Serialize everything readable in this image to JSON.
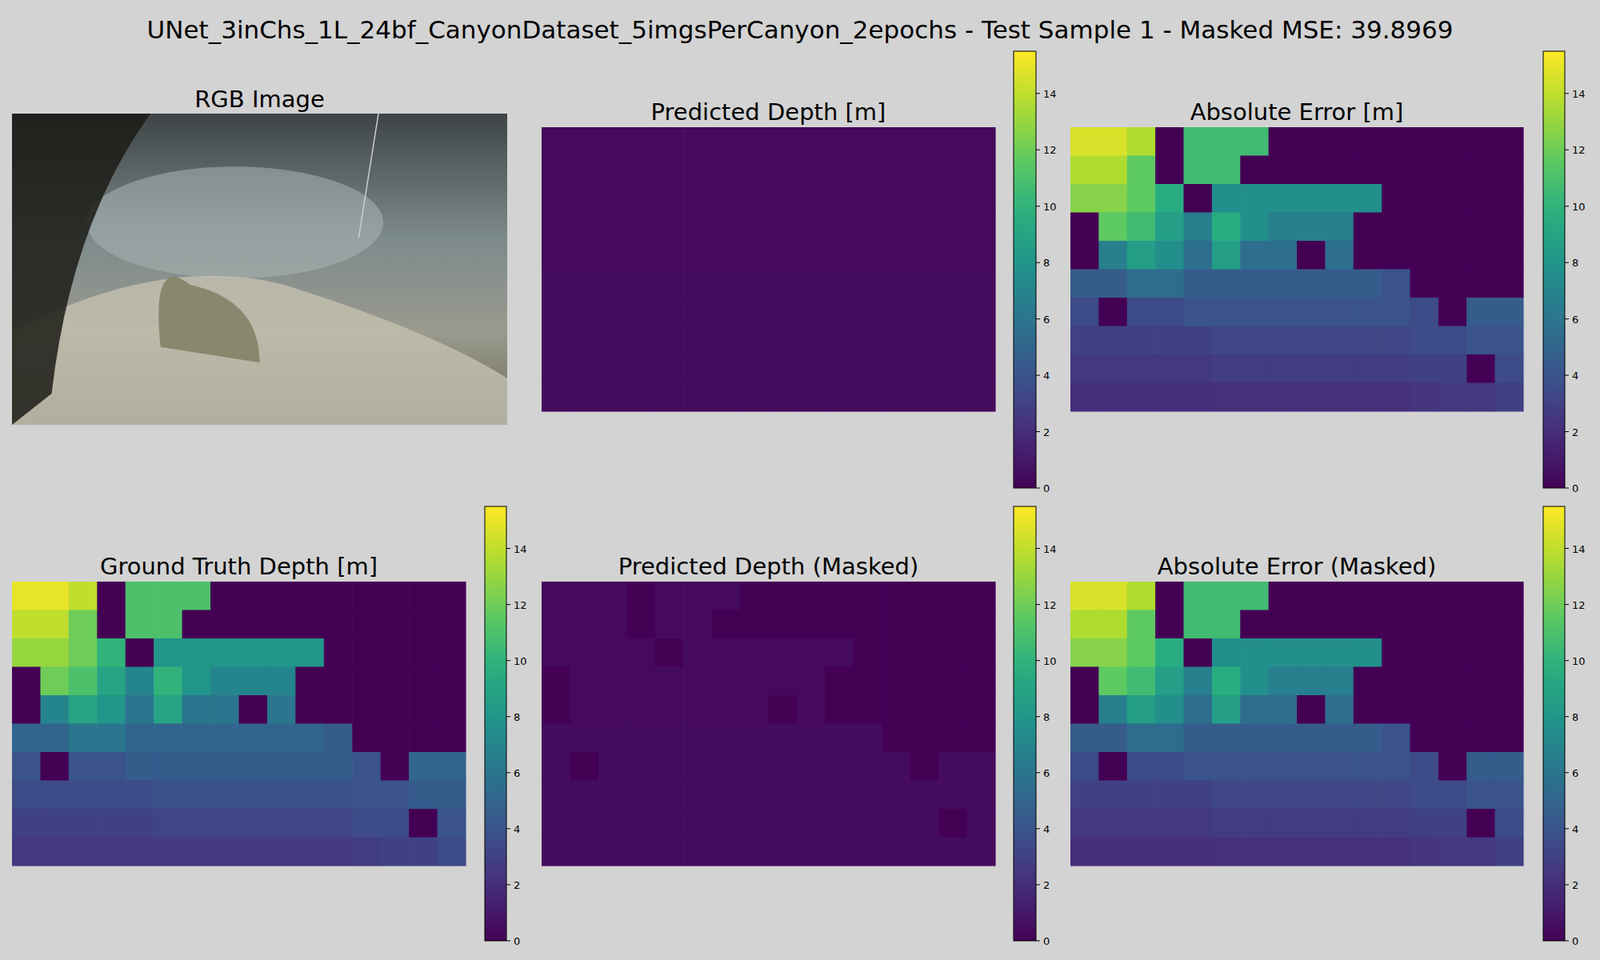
{
  "title": "UNet_3inChs_1L_24bf_CanyonDataset_5imgsPerCanyon_2epochs - Test Sample 1 - Masked MSE: 39.8969",
  "chart_data": [
    {
      "type": "image",
      "title": "RGB Image"
    },
    {
      "type": "heatmap",
      "title": "Predicted Depth [m]",
      "clim": [
        0,
        15.5
      ],
      "cticks": [
        0,
        2,
        4,
        6,
        8,
        10,
        12,
        14
      ],
      "cells": [
        [
          0.4,
          0.4,
          0.4,
          0.4,
          0.4,
          0.4,
          0.4,
          0.4,
          0.4,
          0.4,
          0.4,
          0.4,
          0.4,
          0.4,
          0.4,
          0.4
        ],
        [
          0.4,
          0.4,
          0.4,
          0.4,
          0.4,
          0.4,
          0.4,
          0.4,
          0.4,
          0.4,
          0.4,
          0.4,
          0.4,
          0.4,
          0.4,
          0.4
        ],
        [
          0.4,
          0.4,
          0.4,
          0.4,
          0.4,
          0.4,
          0.4,
          0.4,
          0.4,
          0.4,
          0.4,
          0.4,
          0.4,
          0.4,
          0.4,
          0.4
        ],
        [
          0.4,
          0.4,
          0.4,
          0.4,
          0.4,
          0.4,
          0.4,
          0.4,
          0.4,
          0.4,
          0.4,
          0.4,
          0.4,
          0.4,
          0.4,
          0.4
        ],
        [
          0.4,
          0.4,
          0.4,
          0.4,
          0.4,
          0.4,
          0.4,
          0.4,
          0.4,
          0.4,
          0.4,
          0.4,
          0.4,
          0.4,
          0.4,
          0.4
        ],
        [
          0.5,
          0.5,
          0.5,
          0.5,
          0.5,
          0.5,
          0.5,
          0.5,
          0.5,
          0.5,
          0.5,
          0.5,
          0.5,
          0.5,
          0.5,
          0.5
        ],
        [
          0.5,
          0.5,
          0.5,
          0.5,
          0.5,
          0.5,
          0.5,
          0.5,
          0.5,
          0.5,
          0.5,
          0.5,
          0.5,
          0.5,
          0.5,
          0.5
        ],
        [
          0.5,
          0.5,
          0.5,
          0.5,
          0.5,
          0.5,
          0.5,
          0.5,
          0.5,
          0.5,
          0.5,
          0.5,
          0.5,
          0.5,
          0.5,
          0.5
        ],
        [
          0.5,
          0.5,
          0.5,
          0.5,
          0.5,
          0.5,
          0.5,
          0.5,
          0.5,
          0.5,
          0.5,
          0.5,
          0.5,
          0.5,
          0.5,
          0.5
        ],
        [
          0.5,
          0.5,
          0.5,
          0.5,
          0.5,
          0.5,
          0.5,
          0.5,
          0.5,
          0.5,
          0.5,
          0.5,
          0.5,
          0.5,
          0.5,
          0.5
        ]
      ]
    },
    {
      "type": "heatmap",
      "title": "Absolute Error [m]",
      "clim": [
        0,
        15.5
      ],
      "cticks": [
        0,
        2,
        4,
        6,
        8,
        10,
        12,
        14
      ],
      "cells": [
        [
          14.6,
          14.6,
          13.6,
          0,
          10.6,
          10.6,
          10.6,
          0,
          0,
          0,
          0,
          0,
          0,
          0,
          0,
          0
        ],
        [
          13.6,
          13.6,
          11.6,
          0,
          10.6,
          10.6,
          0,
          0,
          0,
          0,
          0,
          0,
          0,
          0,
          0,
          0
        ],
        [
          12.6,
          12.6,
          11.6,
          9.6,
          0,
          7.6,
          7.6,
          7.6,
          7.6,
          7.6,
          7.6,
          0,
          0,
          0,
          0,
          0
        ],
        [
          0,
          11.6,
          10.6,
          8.6,
          6.6,
          9.6,
          7.6,
          6.6,
          6.6,
          6.6,
          0,
          0,
          0,
          0,
          0,
          0
        ],
        [
          0,
          6.6,
          8.6,
          7.6,
          5.6,
          8.6,
          5.6,
          5.6,
          0,
          5.6,
          0,
          0,
          0,
          0,
          0,
          0
        ],
        [
          4.5,
          4.5,
          5.5,
          5.5,
          4.5,
          4.5,
          4.5,
          4.5,
          4.5,
          4.5,
          4.5,
          4,
          0,
          0,
          0,
          0
        ],
        [
          3.5,
          0,
          3.5,
          3.5,
          4,
          4,
          4,
          4,
          4,
          4,
          4,
          4,
          3.5,
          0,
          4.5,
          4.5
        ],
        [
          3,
          3,
          3,
          3,
          3,
          3.3,
          3.3,
          3.3,
          3.3,
          3.3,
          3.3,
          3.3,
          3.5,
          3.5,
          4,
          4
        ],
        [
          2.5,
          2.5,
          2.5,
          2.5,
          2.5,
          2.7,
          2.7,
          2.7,
          2.7,
          2.7,
          2.7,
          2.7,
          3,
          3,
          0,
          3.5
        ],
        [
          2,
          2,
          2,
          2,
          2,
          2.1,
          2.1,
          2.1,
          2.1,
          2.1,
          2.1,
          2.1,
          2.3,
          2.5,
          2.5,
          3
        ]
      ]
    },
    {
      "type": "heatmap",
      "title": "Ground Truth Depth [m]",
      "clim": [
        0,
        15.5
      ],
      "cticks": [
        0,
        2,
        4,
        6,
        8,
        10,
        12,
        14
      ],
      "cells": [
        [
          15,
          15,
          14,
          0,
          11,
          11,
          11,
          0,
          0,
          0,
          0,
          0,
          0,
          0,
          0,
          0
        ],
        [
          14,
          14,
          12,
          0,
          11,
          11,
          0,
          0,
          0,
          0,
          0,
          0,
          0,
          0,
          0,
          0
        ],
        [
          13,
          13,
          12,
          10,
          0,
          8,
          8,
          8,
          8,
          8,
          8,
          0,
          0,
          0,
          0,
          0
        ],
        [
          0,
          12,
          11,
          9,
          7,
          10,
          8,
          7,
          7,
          7,
          0,
          0,
          0,
          0,
          0,
          0
        ],
        [
          0,
          7,
          9,
          8,
          6,
          9,
          6,
          6,
          0,
          6,
          0,
          0,
          0,
          0,
          0,
          0
        ],
        [
          5,
          5,
          6,
          6,
          5,
          5,
          5,
          5,
          5,
          5,
          5,
          4.5,
          0,
          0,
          0,
          0
        ],
        [
          4,
          0,
          4,
          4,
          4.5,
          4.5,
          4.5,
          4.5,
          4.5,
          4.5,
          4.5,
          4.5,
          4,
          0,
          5,
          5
        ],
        [
          3.5,
          3.5,
          3.5,
          3.5,
          3.5,
          3.8,
          3.8,
          3.8,
          3.8,
          3.8,
          3.8,
          3.8,
          4,
          4,
          4.5,
          4.5
        ],
        [
          3,
          3,
          3,
          3,
          3,
          3.2,
          3.2,
          3.2,
          3.2,
          3.2,
          3.2,
          3.2,
          3.5,
          3.5,
          0,
          4
        ],
        [
          2.5,
          2.5,
          2.5,
          2.5,
          2.5,
          2.6,
          2.6,
          2.6,
          2.6,
          2.6,
          2.6,
          2.6,
          2.8,
          3,
          3,
          3.5
        ]
      ]
    },
    {
      "type": "heatmap",
      "title": "Predicted Depth (Masked)",
      "clim": [
        0,
        15.5
      ],
      "cticks": [
        0,
        2,
        4,
        6,
        8,
        10,
        12,
        14
      ],
      "cells": [
        [
          0.4,
          0.4,
          0.4,
          0,
          0.4,
          0.4,
          0.4,
          0,
          0,
          0,
          0,
          0,
          0,
          0,
          0,
          0
        ],
        [
          0.4,
          0.4,
          0.4,
          0,
          0.4,
          0.4,
          0,
          0,
          0,
          0,
          0,
          0,
          0,
          0,
          0,
          0
        ],
        [
          0.4,
          0.4,
          0.4,
          0.4,
          0,
          0.4,
          0.4,
          0.4,
          0.4,
          0.4,
          0.4,
          0,
          0,
          0,
          0,
          0
        ],
        [
          0,
          0.4,
          0.4,
          0.4,
          0.4,
          0.4,
          0.4,
          0.4,
          0.4,
          0.4,
          0,
          0,
          0,
          0,
          0,
          0
        ],
        [
          0,
          0.4,
          0.4,
          0.4,
          0.4,
          0.4,
          0.4,
          0.4,
          0,
          0.4,
          0,
          0,
          0,
          0,
          0,
          0
        ],
        [
          0.5,
          0.5,
          0.5,
          0.5,
          0.5,
          0.5,
          0.5,
          0.5,
          0.5,
          0.5,
          0.5,
          0.5,
          0,
          0,
          0,
          0
        ],
        [
          0.5,
          0,
          0.5,
          0.5,
          0.5,
          0.5,
          0.5,
          0.5,
          0.5,
          0.5,
          0.5,
          0.5,
          0.5,
          0,
          0.5,
          0.5
        ],
        [
          0.5,
          0.5,
          0.5,
          0.5,
          0.5,
          0.5,
          0.5,
          0.5,
          0.5,
          0.5,
          0.5,
          0.5,
          0.5,
          0.5,
          0.5,
          0.5
        ],
        [
          0.5,
          0.5,
          0.5,
          0.5,
          0.5,
          0.5,
          0.5,
          0.5,
          0.5,
          0.5,
          0.5,
          0.5,
          0.5,
          0.5,
          0,
          0.5
        ],
        [
          0.5,
          0.5,
          0.5,
          0.5,
          0.5,
          0.5,
          0.5,
          0.5,
          0.5,
          0.5,
          0.5,
          0.5,
          0.5,
          0.5,
          0.5,
          0.5
        ]
      ]
    },
    {
      "type": "heatmap",
      "title": "Absolute Error (Masked)",
      "clim": [
        0,
        15.5
      ],
      "cticks": [
        0,
        2,
        4,
        6,
        8,
        10,
        12,
        14
      ],
      "cells": [
        [
          14.6,
          14.6,
          13.6,
          0,
          10.6,
          10.6,
          10.6,
          0,
          0,
          0,
          0,
          0,
          0,
          0,
          0,
          0
        ],
        [
          13.6,
          13.6,
          11.6,
          0,
          10.6,
          10.6,
          0,
          0,
          0,
          0,
          0,
          0,
          0,
          0,
          0,
          0
        ],
        [
          12.6,
          12.6,
          11.6,
          9.6,
          0,
          7.6,
          7.6,
          7.6,
          7.6,
          7.6,
          7.6,
          0,
          0,
          0,
          0,
          0
        ],
        [
          0,
          11.6,
          10.6,
          8.6,
          6.6,
          9.6,
          7.6,
          6.6,
          6.6,
          6.6,
          0,
          0,
          0,
          0,
          0,
          0
        ],
        [
          0,
          6.6,
          8.6,
          7.6,
          5.6,
          8.6,
          5.6,
          5.6,
          0,
          5.6,
          0,
          0,
          0,
          0,
          0,
          0
        ],
        [
          4.5,
          4.5,
          5.5,
          5.5,
          4.5,
          4.5,
          4.5,
          4.5,
          4.5,
          4.5,
          4.5,
          4,
          0,
          0,
          0,
          0
        ],
        [
          3.5,
          0,
          3.5,
          3.5,
          4,
          4,
          4,
          4,
          4,
          4,
          4,
          4,
          3.5,
          0,
          4.5,
          4.5
        ],
        [
          3,
          3,
          3,
          3,
          3,
          3.3,
          3.3,
          3.3,
          3.3,
          3.3,
          3.3,
          3.3,
          3.5,
          3.5,
          4,
          4
        ],
        [
          2.5,
          2.5,
          2.5,
          2.5,
          2.5,
          2.7,
          2.7,
          2.7,
          2.7,
          2.7,
          2.7,
          2.7,
          3,
          3,
          0,
          3.5
        ],
        [
          2,
          2,
          2,
          2,
          2,
          2.1,
          2.1,
          2.1,
          2.1,
          2.1,
          2.1,
          2.1,
          2.3,
          2.5,
          2.5,
          3
        ]
      ]
    }
  ]
}
